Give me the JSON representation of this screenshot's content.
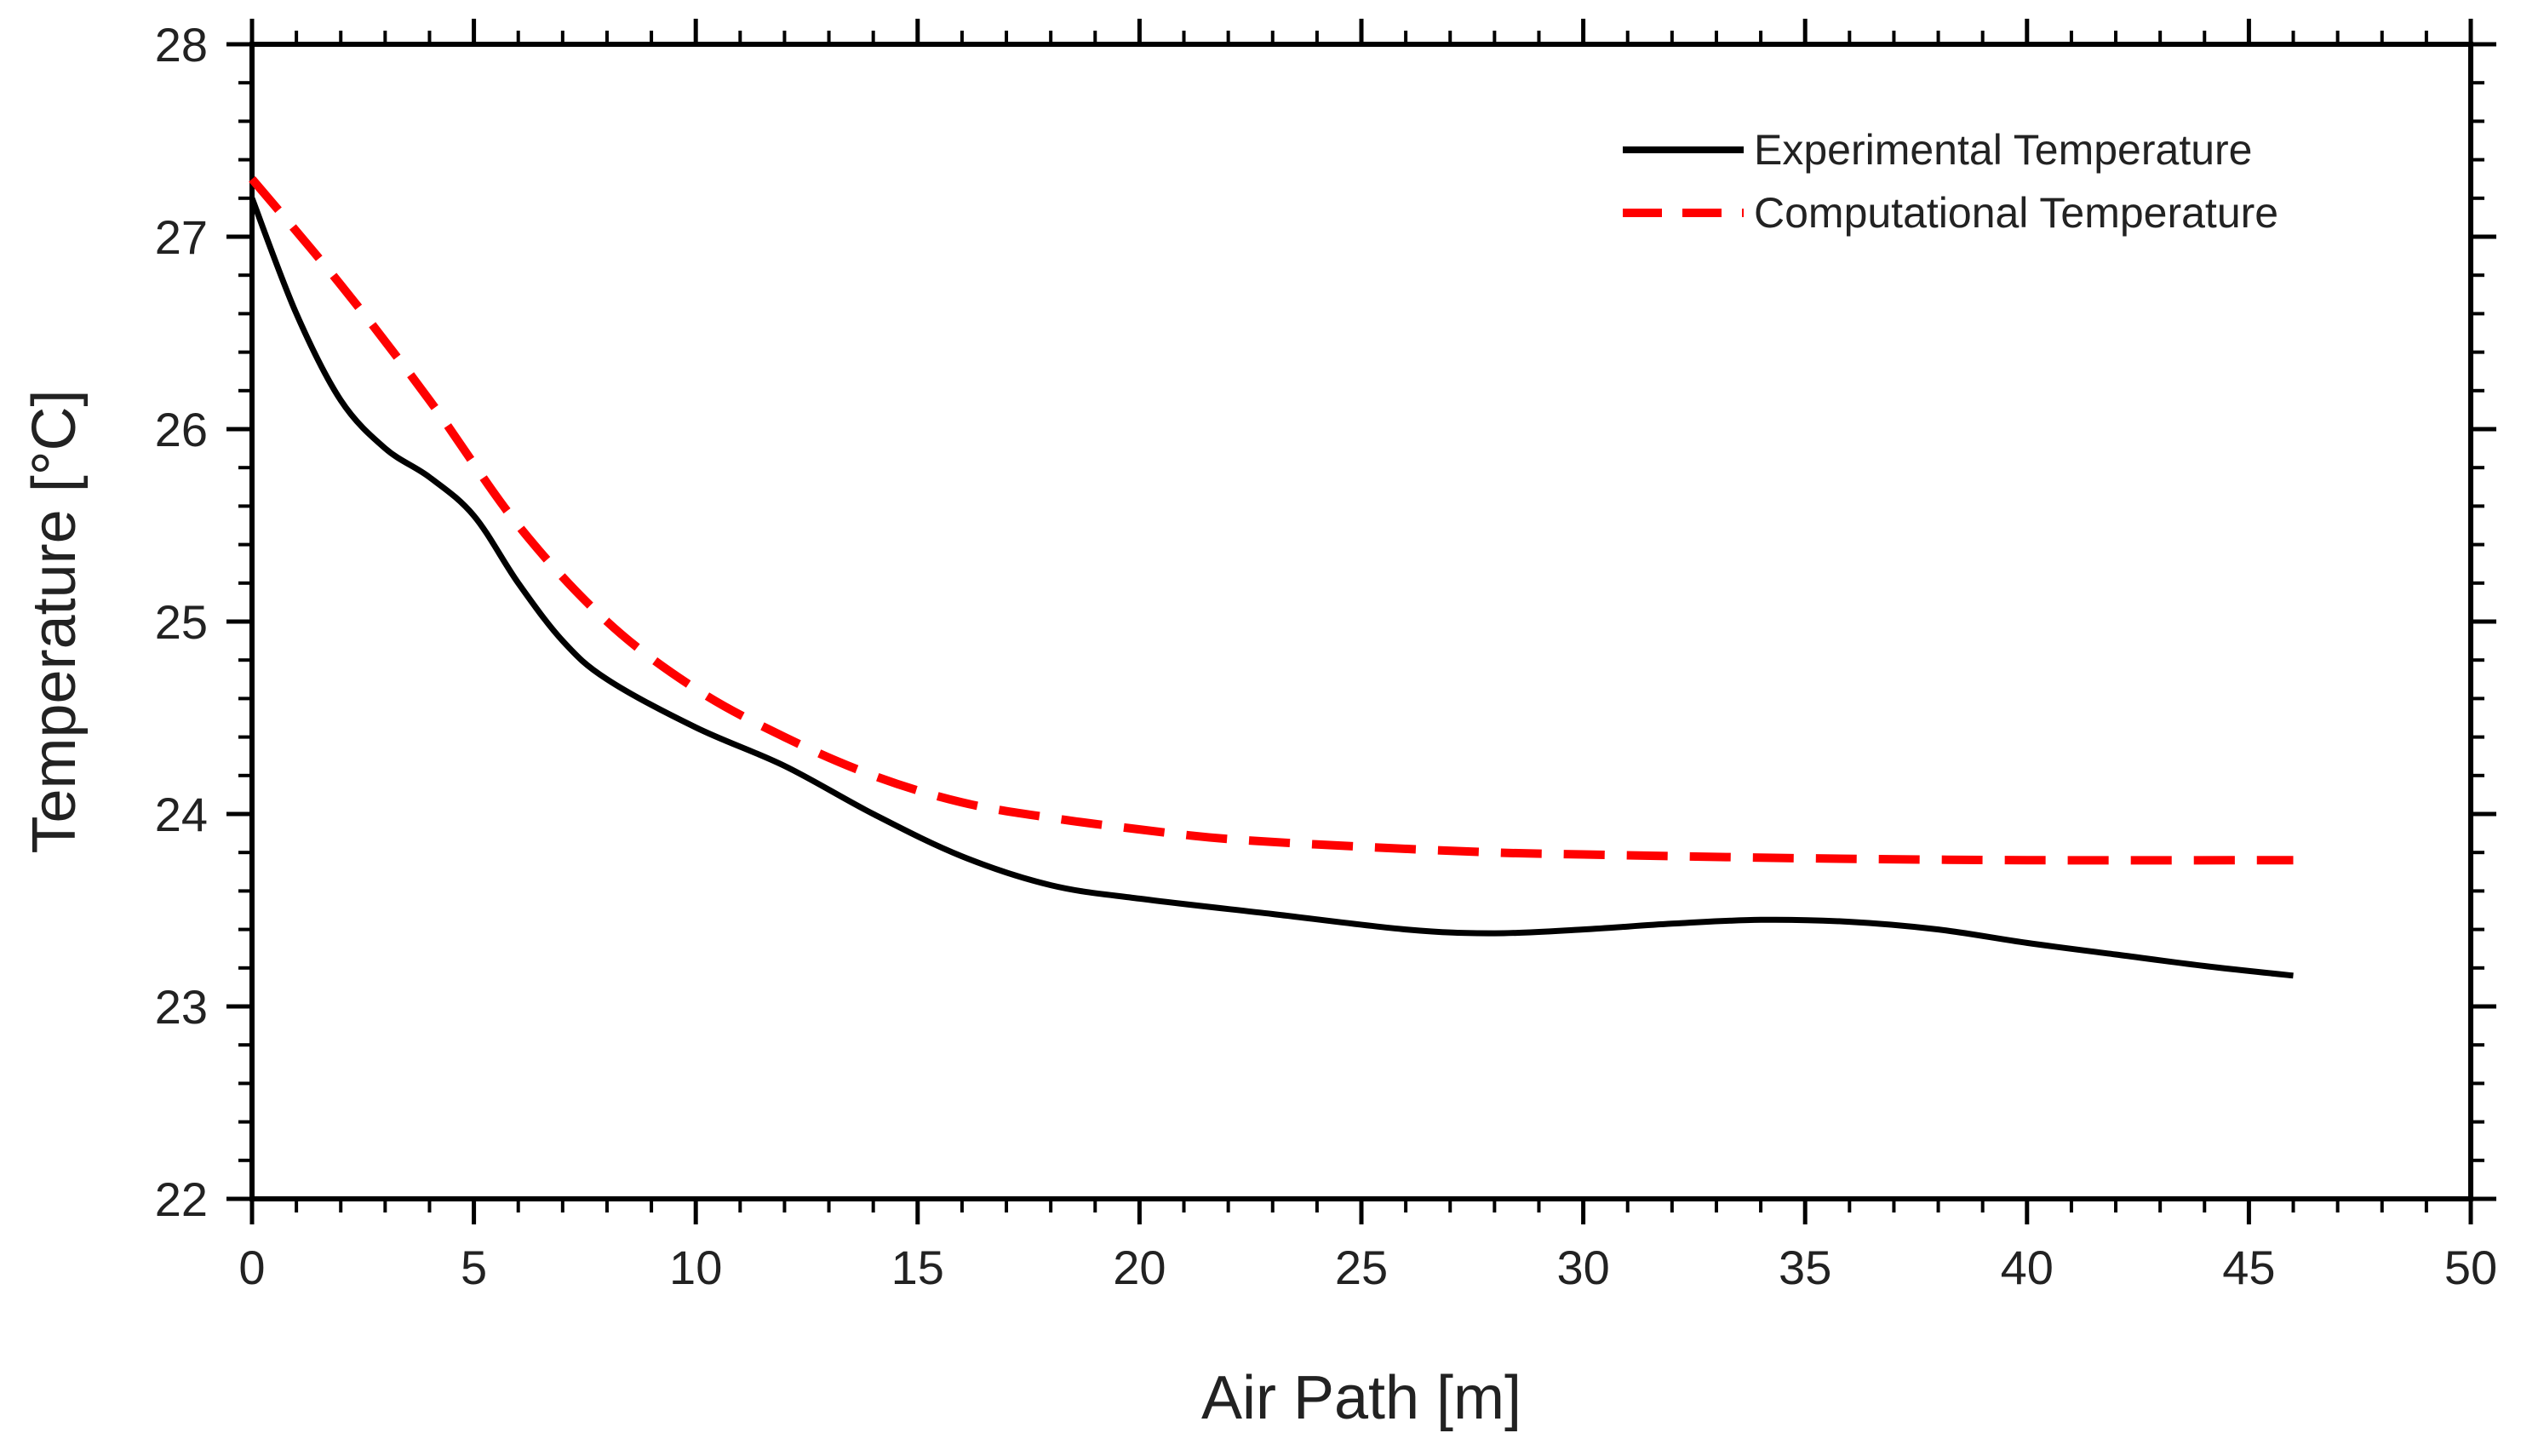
{
  "chart_data": {
    "type": "line",
    "title": "",
    "xlabel": "Air Path [m]",
    "ylabel": "Temperature [°C]",
    "xlim": [
      0,
      50
    ],
    "ylim": [
      22,
      28
    ],
    "xticks": [
      0,
      5,
      10,
      15,
      20,
      25,
      30,
      35,
      40,
      45,
      50
    ],
    "yticks": [
      22,
      23,
      24,
      25,
      26,
      27,
      28
    ],
    "xtick_labels": [
      "0",
      "5",
      "10",
      "15",
      "20",
      "25",
      "30",
      "35",
      "40",
      "45",
      "50"
    ],
    "ytick_labels": [
      "22",
      "23",
      "24",
      "25",
      "26",
      "27",
      "28"
    ],
    "grid": false,
    "legend_position": "top-right",
    "series": [
      {
        "name": "Experimental Temperature",
        "color": "#000000",
        "style": "solid",
        "x": [
          0,
          1,
          2,
          3,
          4,
          5,
          6,
          7,
          8,
          10,
          12,
          14,
          16,
          18,
          20,
          23,
          26,
          28,
          30,
          32,
          34,
          36,
          38,
          40,
          42,
          44,
          46
        ],
        "y": [
          27.2,
          26.6,
          26.15,
          25.9,
          25.75,
          25.55,
          25.2,
          24.9,
          24.7,
          24.45,
          24.25,
          24.0,
          23.78,
          23.63,
          23.56,
          23.48,
          23.4,
          23.38,
          23.4,
          23.43,
          23.45,
          23.44,
          23.4,
          23.33,
          23.27,
          23.21,
          23.16
        ]
      },
      {
        "name": "Computational Temperature",
        "color": "#ff0000",
        "style": "dashed",
        "x": [
          0,
          2,
          4,
          6,
          8,
          10,
          12,
          14,
          16,
          18,
          20,
          22,
          25,
          28,
          30,
          35,
          40,
          46
        ],
        "y": [
          27.3,
          26.75,
          26.15,
          25.5,
          25.0,
          24.65,
          24.4,
          24.2,
          24.06,
          23.98,
          23.92,
          23.87,
          23.83,
          23.8,
          23.79,
          23.77,
          23.76,
          23.76
        ]
      }
    ]
  }
}
